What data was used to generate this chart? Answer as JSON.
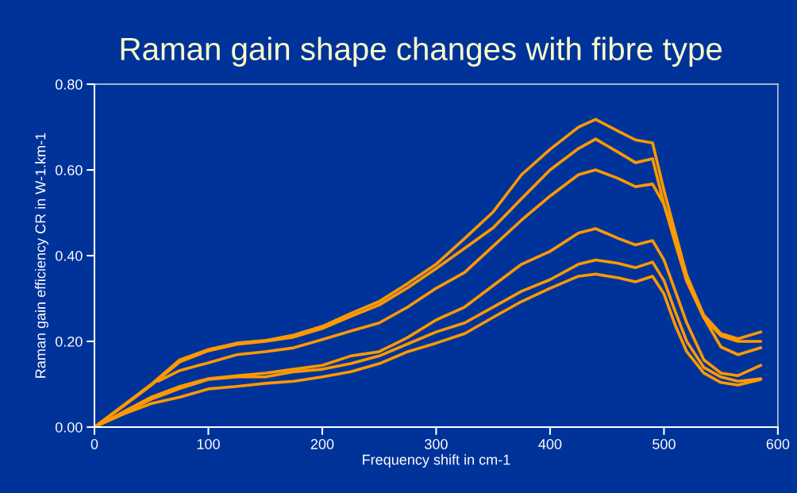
{
  "chart_data": {
    "type": "line",
    "title": "Raman gain shape changes with fibre type",
    "xlabel": "Frequency shift in cm-1",
    "ylabel": "Raman gain efficiency CR in W-1.km-1",
    "x": [
      0,
      25,
      50,
      75,
      100,
      125,
      150,
      175,
      200,
      225,
      250,
      275,
      300,
      325,
      350,
      375,
      400,
      425,
      440,
      460,
      475,
      490,
      500,
      510,
      520,
      535,
      550,
      565,
      585
    ],
    "series": [
      {
        "color": "#ff9900",
        "values": [
          0,
          0.05,
          0.1,
          0.157,
          0.181,
          0.196,
          0.202,
          0.215,
          0.235,
          0.265,
          0.293,
          0.335,
          0.38,
          0.44,
          0.502,
          0.589,
          0.648,
          0.7,
          0.718,
          0.69,
          0.67,
          0.663,
          0.552,
          0.453,
          0.354,
          0.261,
          0.218,
          0.206,
          0.222
        ]
      },
      {
        "color": "#ff9900",
        "values": [
          0,
          0.048,
          0.098,
          0.152,
          0.178,
          0.193,
          0.2,
          0.21,
          0.23,
          0.258,
          0.285,
          0.325,
          0.37,
          0.417,
          0.465,
          0.533,
          0.6,
          0.65,
          0.672,
          0.641,
          0.617,
          0.626,
          0.52,
          0.428,
          0.34,
          0.255,
          0.213,
          0.2,
          0.2
        ]
      },
      {
        "color": "#ff9900",
        "x": [
          56,
          75,
          100,
          125,
          150,
          175,
          200,
          225,
          250,
          275,
          300,
          325,
          350,
          375,
          400,
          425,
          440,
          460,
          475,
          490,
          500,
          510,
          520,
          535,
          550,
          565,
          585
        ],
        "values": [
          0.107,
          0.132,
          0.15,
          0.169,
          0.176,
          0.185,
          0.204,
          0.224,
          0.243,
          0.28,
          0.324,
          0.361,
          0.422,
          0.483,
          0.539,
          0.589,
          0.6,
          0.58,
          0.561,
          0.567,
          0.52,
          0.44,
          0.354,
          0.256,
          0.187,
          0.169,
          0.185
        ]
      },
      {
        "color": "#ff9900",
        "values": [
          0,
          0.035,
          0.07,
          0.095,
          0.113,
          0.12,
          0.126,
          0.135,
          0.144,
          0.166,
          0.176,
          0.209,
          0.25,
          0.28,
          0.33,
          0.38,
          0.41,
          0.453,
          0.463,
          0.44,
          0.425,
          0.435,
          0.39,
          0.317,
          0.243,
          0.157,
          0.126,
          0.12,
          0.144
        ]
      },
      {
        "color": "#ff9900",
        "values": [
          0,
          0.033,
          0.065,
          0.09,
          0.111,
          0.117,
          0.117,
          0.129,
          0.135,
          0.148,
          0.166,
          0.194,
          0.222,
          0.243,
          0.28,
          0.317,
          0.344,
          0.38,
          0.39,
          0.382,
          0.372,
          0.385,
          0.342,
          0.269,
          0.2,
          0.139,
          0.117,
          0.107,
          0.113
        ]
      },
      {
        "color": "#ff9900",
        "values": [
          0,
          0.03,
          0.055,
          0.07,
          0.089,
          0.095,
          0.102,
          0.107,
          0.117,
          0.129,
          0.148,
          0.176,
          0.196,
          0.218,
          0.256,
          0.293,
          0.324,
          0.352,
          0.357,
          0.348,
          0.339,
          0.352,
          0.311,
          0.237,
          0.176,
          0.126,
          0.104,
          0.098,
          0.111
        ]
      }
    ],
    "xlim": [
      0,
      600
    ],
    "xticks": [
      0,
      100,
      200,
      300,
      400,
      500,
      600
    ],
    "ylim": [
      0,
      0.8
    ],
    "yticks": [
      {
        "value": 0,
        "label": "0.00"
      },
      {
        "value": 0.2,
        "label": "0.20"
      },
      {
        "value": 0.4,
        "label": "0.40"
      },
      {
        "value": 0.6,
        "label": "0.60"
      },
      {
        "value": 0.8,
        "label": "0.80"
      }
    ],
    "marker": "none",
    "line_style": "solid"
  }
}
